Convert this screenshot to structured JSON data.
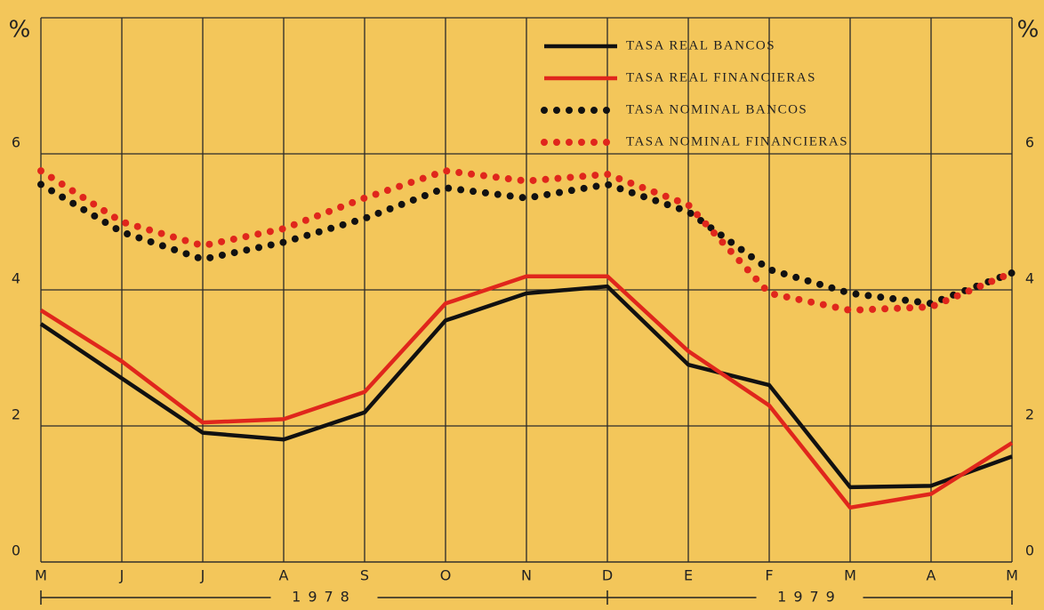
{
  "chart_data": {
    "type": "line",
    "ylabel": "%",
    "y2label": "%",
    "categories": [
      "M",
      "J",
      "J",
      "A",
      "S",
      "O",
      "N",
      "D",
      "E",
      "F",
      "M",
      "A",
      "M"
    ],
    "x_groups": [
      "1978",
      "1979"
    ],
    "ylim": [
      0,
      8
    ],
    "yticks": [
      0,
      2,
      4,
      6
    ],
    "y2lim": [
      0,
      8
    ],
    "y2ticks": [
      0,
      2,
      4,
      6
    ],
    "grid": true,
    "legend": "top-right",
    "series": [
      {
        "name": "TASA REAL BANCOS",
        "color": "#111111",
        "line_style": "solid",
        "values": [
          3.5,
          2.7,
          1.9,
          1.8,
          2.2,
          3.55,
          3.95,
          4.05,
          2.9,
          2.6,
          1.1,
          1.12,
          1.55
        ]
      },
      {
        "name": "TASA REAL FINANCIERAS",
        "color": "#e0261c",
        "line_style": "solid",
        "values": [
          3.7,
          2.95,
          2.05,
          2.1,
          2.5,
          3.8,
          4.2,
          4.2,
          3.1,
          2.3,
          0.8,
          1.0,
          1.75
        ]
      },
      {
        "name": "TASA NOMINAL BANCOS",
        "color": "#111111",
        "line_style": "dotted",
        "values": [
          5.55,
          4.85,
          4.45,
          4.7,
          5.05,
          5.5,
          5.35,
          5.55,
          5.15,
          4.3,
          3.95,
          3.8,
          4.25
        ]
      },
      {
        "name": "TASA NOMINAL FINANCIERAS",
        "color": "#e0261c",
        "line_style": "dotted",
        "values": [
          5.75,
          5.0,
          4.65,
          4.9,
          5.35,
          5.75,
          5.6,
          5.7,
          5.25,
          3.95,
          3.7,
          3.75,
          4.25
        ]
      }
    ]
  }
}
